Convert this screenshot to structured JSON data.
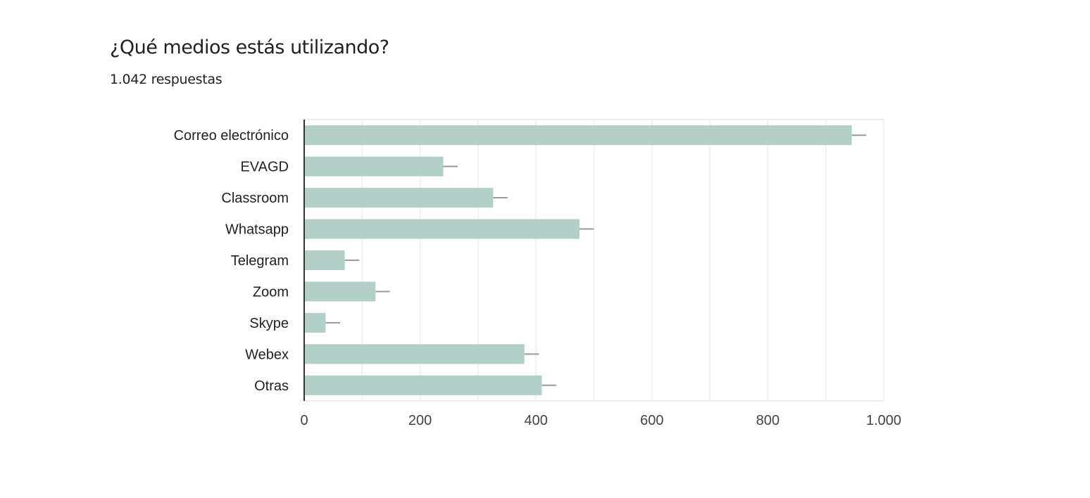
{
  "header": {
    "title": "¿Qué medios estás utilizando?",
    "subtitle": "1.042 respuestas"
  },
  "colors": {
    "bar": "#b2cfc8",
    "error_bar": "#999999",
    "gridline": "#eeeeee",
    "axis": "#333333",
    "text": "#202124"
  },
  "chart_data": {
    "type": "bar",
    "orientation": "horizontal",
    "categories": [
      "Correo electrónico",
      "EVAGD",
      "Classroom",
      "Whatsapp",
      "Telegram",
      "Zoom",
      "Skype",
      "Webex",
      "Otras"
    ],
    "values": [
      945,
      240,
      326,
      475,
      70,
      123,
      37,
      380,
      410
    ],
    "error_bar": 25,
    "xlim": [
      0,
      1000
    ],
    "xticks": [
      0,
      200,
      400,
      600,
      800,
      1000
    ],
    "xtick_labels": [
      "0",
      "200",
      "400",
      "600",
      "800",
      "1.000"
    ],
    "grid": true,
    "legend": "none"
  }
}
